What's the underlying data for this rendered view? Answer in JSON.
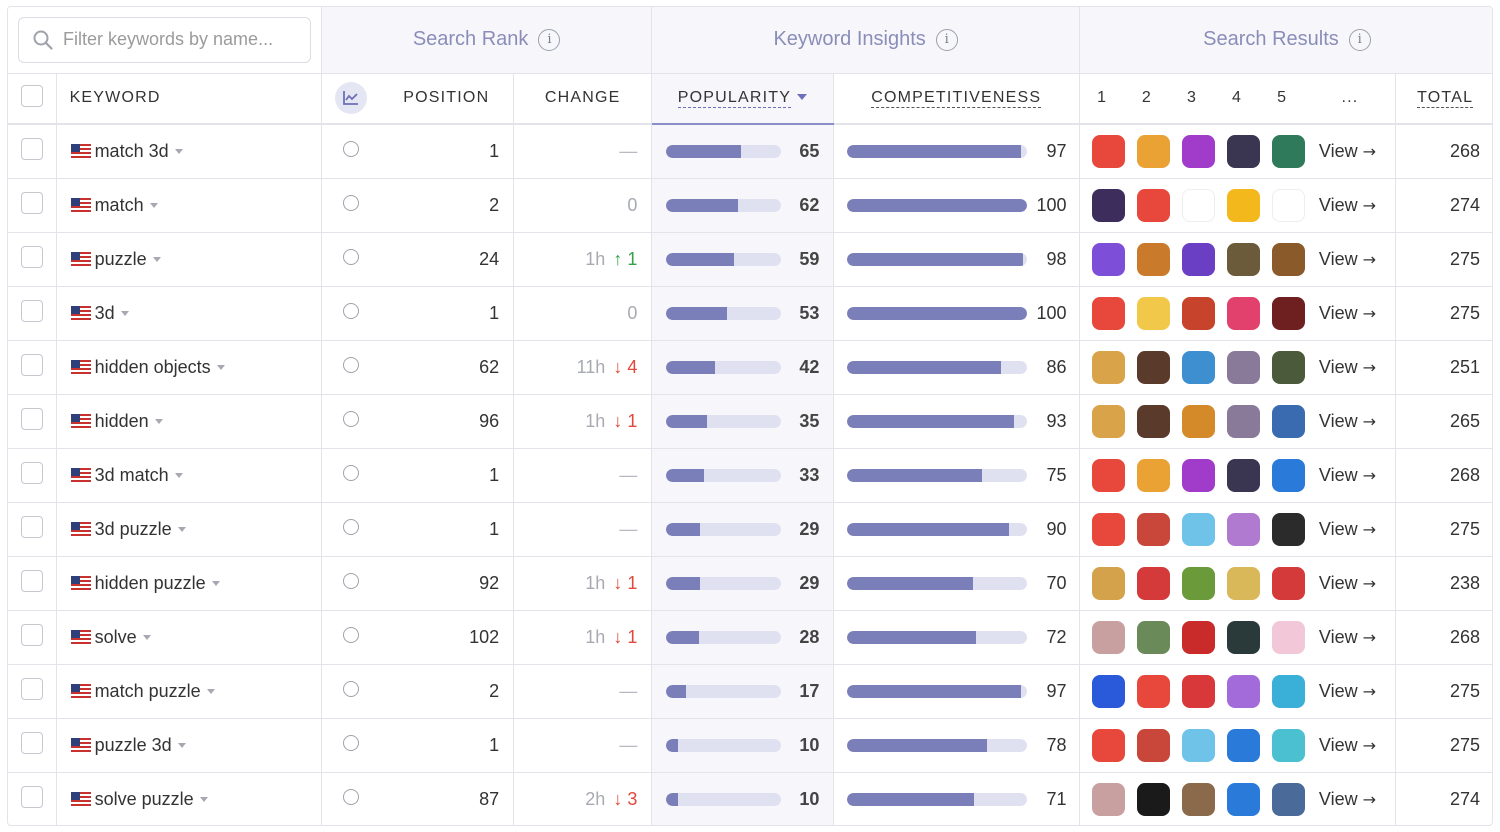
{
  "search": {
    "placeholder": "Filter keywords by name..."
  },
  "groups": {
    "search_rank": "Search Rank",
    "keyword_insights": "Keyword Insights",
    "search_results": "Search Results",
    "info_glyph": "i"
  },
  "columns": {
    "keyword": "KEYWORD",
    "position": "POSITION",
    "change": "CHANGE",
    "popularity": "POPULARITY",
    "competitiveness": "COMPETITIVENESS",
    "r1": "1",
    "r2": "2",
    "r3": "3",
    "r4": "4",
    "r5": "5",
    "more": "...",
    "total": "TOTAL"
  },
  "view_label": "View",
  "colors": {
    "accent": "#6b70b8",
    "bar_fill": "#7b7fb9",
    "bar_track": "#e0e1f0",
    "up": "#35a14a",
    "down": "#e0483c"
  },
  "rows": [
    {
      "keyword": "match 3d",
      "position": "1",
      "change": "—",
      "popularity": 65,
      "competitiveness": 97,
      "total": "268",
      "apps": [
        "#e8473b",
        "#e9a233",
        "#a03cc9",
        "#3a3550",
        "#2f7a5b"
      ]
    },
    {
      "keyword": "match",
      "position": "2",
      "change": "0",
      "popularity": 62,
      "competitiveness": 100,
      "total": "274",
      "apps": [
        "#3d2d5c",
        "#e8473b",
        "#ffffff",
        "#f3b81b",
        "#ffffff"
      ]
    },
    {
      "keyword": "puzzle",
      "position": "24",
      "change_time": "1h",
      "change_dir": "↑",
      "change_val": "1",
      "popularity": 59,
      "competitiveness": 98,
      "total": "275",
      "apps": [
        "#7d4fd8",
        "#c97a2b",
        "#6a3fc4",
        "#6b5b3a",
        "#8a5a2b"
      ]
    },
    {
      "keyword": "3d",
      "position": "1",
      "change": "0",
      "popularity": 53,
      "competitiveness": 100,
      "total": "275",
      "apps": [
        "#e8473b",
        "#f2c84a",
        "#c8432c",
        "#e3416d",
        "#6e2020"
      ]
    },
    {
      "keyword": "hidden objects",
      "position": "62",
      "change_time": "11h",
      "change_dir": "↓",
      "change_val": "4",
      "popularity": 42,
      "competitiveness": 86,
      "total": "251",
      "apps": [
        "#d9a34a",
        "#5a3a2a",
        "#3d8fcf",
        "#8a7a9a",
        "#4b5a3a"
      ]
    },
    {
      "keyword": "hidden",
      "position": "96",
      "change_time": "1h",
      "change_dir": "↓",
      "change_val": "1",
      "popularity": 35,
      "competitiveness": 93,
      "total": "265",
      "apps": [
        "#d9a34a",
        "#5a3a2a",
        "#d58a2a",
        "#8a7a9a",
        "#3a6ab0"
      ]
    },
    {
      "keyword": "3d match",
      "position": "1",
      "change": "—",
      "popularity": 33,
      "competitiveness": 75,
      "total": "268",
      "apps": [
        "#e8473b",
        "#e9a233",
        "#a03cc9",
        "#3a3550",
        "#2a7ad9"
      ]
    },
    {
      "keyword": "3d puzzle",
      "position": "1",
      "change": "—",
      "popularity": 29,
      "competitiveness": 90,
      "total": "275",
      "apps": [
        "#e8473b",
        "#c9463a",
        "#6fc3e8",
        "#b07ad0",
        "#2b2b2b"
      ]
    },
    {
      "keyword": "hidden puzzle",
      "position": "92",
      "change_time": "1h",
      "change_dir": "↓",
      "change_val": "1",
      "popularity": 29,
      "competitiveness": 70,
      "total": "238",
      "apps": [
        "#d4a24a",
        "#d43a3a",
        "#6a9a3a",
        "#d9b85a",
        "#d43a3a"
      ]
    },
    {
      "keyword": "solve",
      "position": "102",
      "change_time": "1h",
      "change_dir": "↓",
      "change_val": "1",
      "popularity": 28,
      "competitiveness": 72,
      "total": "268",
      "apps": [
        "#c9a0a0",
        "#6a8a5a",
        "#c92a2a",
        "#2a3a3a",
        "#f2c8d8"
      ]
    },
    {
      "keyword": "match puzzle",
      "position": "2",
      "change": "—",
      "popularity": 17,
      "competitiveness": 97,
      "total": "275",
      "apps": [
        "#2a5ad9",
        "#e8473b",
        "#d9383a",
        "#a36ad9",
        "#3ab0d9"
      ]
    },
    {
      "keyword": "puzzle 3d",
      "position": "1",
      "change": "—",
      "popularity": 10,
      "competitiveness": 78,
      "total": "275",
      "apps": [
        "#e8473b",
        "#c9463a",
        "#6fc3e8",
        "#2a7ad9",
        "#4ac0d0"
      ]
    },
    {
      "keyword": "solve puzzle",
      "position": "87",
      "change_time": "2h",
      "change_dir": "↓",
      "change_val": "3",
      "popularity": 10,
      "competitiveness": 71,
      "total": "274",
      "apps": [
        "#c9a0a0",
        "#1a1a1a",
        "#8a6a4a",
        "#2a7ad9",
        "#4a6a9a"
      ]
    }
  ]
}
